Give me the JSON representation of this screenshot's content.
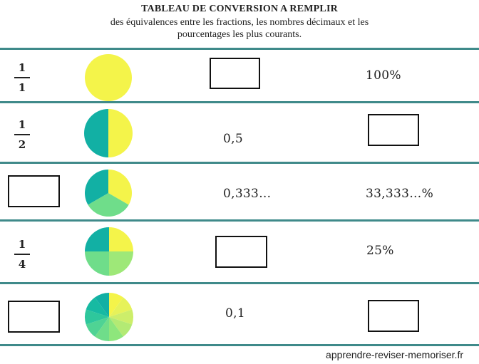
{
  "title": "TABLEAU DE CONVERSION A REMPLIR",
  "subtitle_line1": "des équivalences entre les fractions, les nombres décimaux et les",
  "subtitle_line2": "pourcentages les plus courants.",
  "rows": [
    {
      "fraction": {
        "num": "1",
        "den": "1"
      },
      "slices": 1,
      "decimal": null,
      "percent": "100%"
    },
    {
      "fraction": {
        "num": "1",
        "den": "2"
      },
      "slices": 2,
      "decimal": "0,5",
      "percent": null
    },
    {
      "fraction": null,
      "slices": 3,
      "decimal": "0,333…",
      "percent": "33,333…%"
    },
    {
      "fraction": {
        "num": "1",
        "den": "4"
      },
      "slices": 4,
      "decimal": null,
      "percent": "25%"
    },
    {
      "fraction": null,
      "slices": 10,
      "decimal": "0,1",
      "percent": null
    }
  ],
  "footer": "apprendre-reviser-memoriser.fr",
  "colors": {
    "line": "#3f8a8a",
    "yellow": "#f4f44a",
    "teal": "#12b0a4",
    "green": "#6fdd8a",
    "lightgreen": "#9ee878"
  }
}
